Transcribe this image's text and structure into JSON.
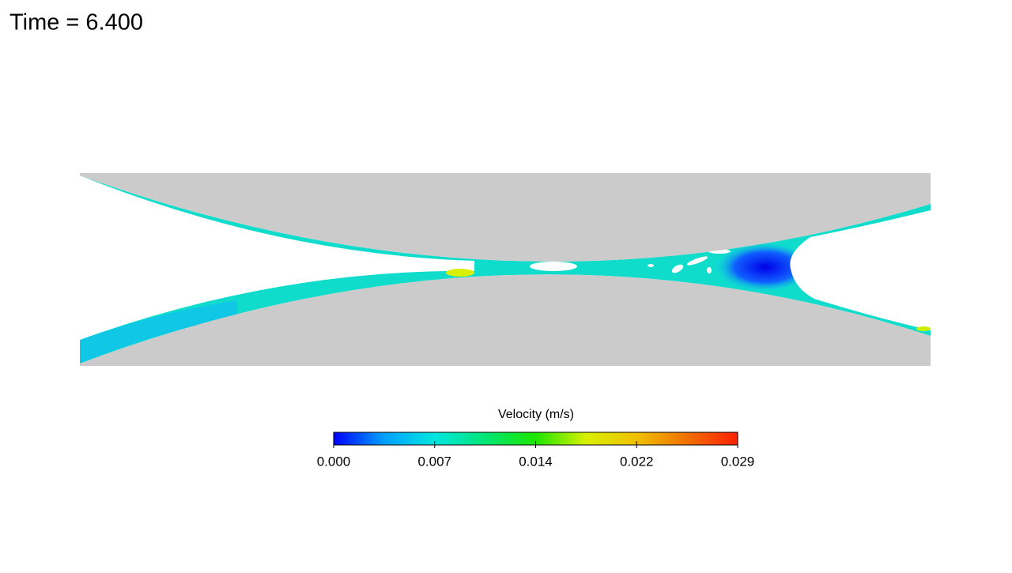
{
  "header": {
    "title": "Time = 6.400"
  },
  "colorbar": {
    "title": "Velocity (m/s)",
    "lim": [
      0,
      0.0288
    ],
    "ticks": [
      {
        "value": 0,
        "label": "0.000"
      },
      {
        "value": 0.0072,
        "label": "0.007"
      },
      {
        "value": 0.0144,
        "label": "0.014"
      },
      {
        "value": 0.0216,
        "label": "0.022"
      },
      {
        "value": 0.0288,
        "label": "0.029"
      }
    ],
    "colors": [
      "#0000ff",
      "#00a0ff",
      "#00e6e0",
      "#00e676",
      "#1ee600",
      "#d8f000",
      "#f0c000",
      "#f07000",
      "#ff2000"
    ]
  }
}
